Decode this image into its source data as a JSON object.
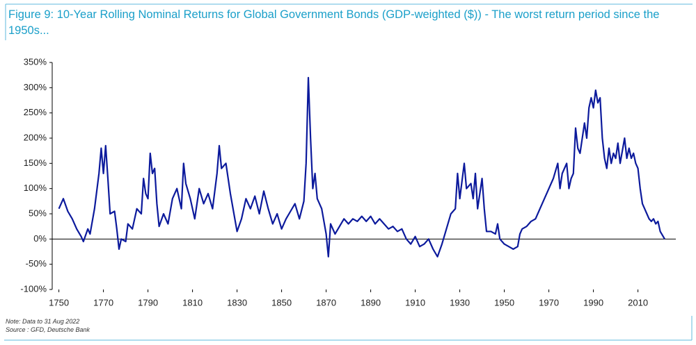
{
  "chart_data": {
    "type": "line",
    "title": "Figure 9: 10-Year Rolling Nominal Returns for Global Government Bonds (GDP-weighted ($)) - The worst return period since the 1950s...",
    "note": "Note: Data to 31 Aug 2022",
    "source": "Source : GFD, Deutsche Bank",
    "xlim": [
      1747,
      2027
    ],
    "xticks": [
      1750,
      1770,
      1790,
      1810,
      1830,
      1850,
      1870,
      1890,
      1910,
      1930,
      1950,
      1970,
      1990,
      2010
    ],
    "ylim": [
      -100,
      350
    ],
    "yticks": [
      {
        "value": -100,
        "label": "-100%"
      },
      {
        "value": -50,
        "label": "-50%"
      },
      {
        "value": 0,
        "label": "0%"
      },
      {
        "value": 50,
        "label": "50%"
      },
      {
        "value": 100,
        "label": "100%"
      },
      {
        "value": 150,
        "label": "150%"
      },
      {
        "value": 200,
        "label": "200%"
      },
      {
        "value": 250,
        "label": "250%"
      },
      {
        "value": 300,
        "label": "300%"
      },
      {
        "value": 350,
        "label": "350%"
      }
    ],
    "grid": false,
    "color": "#0c1a9c",
    "x": [
      1750,
      1752,
      1754,
      1756,
      1758,
      1760,
      1761,
      1763,
      1764,
      1766,
      1768,
      1769,
      1770,
      1771,
      1772,
      1773,
      1775,
      1776,
      1777,
      1778,
      1780,
      1781,
      1783,
      1785,
      1787,
      1788,
      1789,
      1790,
      1791,
      1792,
      1793,
      1794,
      1795,
      1797,
      1799,
      1801,
      1803,
      1805,
      1806,
      1807,
      1809,
      1811,
      1813,
      1815,
      1817,
      1819,
      1821,
      1822,
      1823,
      1825,
      1827,
      1829,
      1830,
      1832,
      1834,
      1836,
      1838,
      1840,
      1842,
      1844,
      1846,
      1848,
      1850,
      1852,
      1854,
      1856,
      1858,
      1860,
      1861,
      1862,
      1863,
      1864,
      1865,
      1866,
      1868,
      1870,
      1871,
      1872,
      1874,
      1876,
      1878,
      1880,
      1882,
      1884,
      1886,
      1888,
      1890,
      1892,
      1894,
      1896,
      1898,
      1900,
      1902,
      1904,
      1906,
      1908,
      1910,
      1912,
      1914,
      1916,
      1918,
      1920,
      1922,
      1924,
      1926,
      1928,
      1929,
      1930,
      1932,
      1933,
      1935,
      1936,
      1937,
      1938,
      1940,
      1941,
      1942,
      1944,
      1946,
      1947,
      1948,
      1950,
      1952,
      1954,
      1956,
      1957,
      1958,
      1960,
      1962,
      1964,
      1966,
      1968,
      1970,
      1972,
      1974,
      1975,
      1976,
      1978,
      1979,
      1980,
      1981,
      1982,
      1983,
      1984,
      1985,
      1986,
      1987,
      1988,
      1989,
      1990,
      1991,
      1992,
      1993,
      1994,
      1995,
      1996,
      1997,
      1998,
      1999,
      2000,
      2001,
      2002,
      2003,
      2004,
      2005,
      2006,
      2007,
      2008,
      2009,
      2010,
      2011,
      2012,
      2013,
      2014,
      2015,
      2016,
      2017,
      2018,
      2019,
      2020,
      2022
    ],
    "values": [
      60,
      80,
      55,
      40,
      20,
      5,
      -5,
      20,
      10,
      60,
      130,
      180,
      130,
      185,
      120,
      50,
      55,
      20,
      -20,
      0,
      -5,
      30,
      20,
      60,
      50,
      120,
      90,
      80,
      170,
      130,
      140,
      70,
      25,
      50,
      30,
      80,
      100,
      60,
      150,
      110,
      80,
      40,
      100,
      70,
      90,
      60,
      130,
      185,
      140,
      150,
      90,
      40,
      15,
      40,
      80,
      60,
      85,
      50,
      95,
      60,
      30,
      50,
      20,
      40,
      55,
      70,
      40,
      75,
      150,
      320,
      200,
      100,
      130,
      80,
      60,
      10,
      -35,
      30,
      10,
      25,
      40,
      30,
      40,
      35,
      45,
      35,
      45,
      30,
      40,
      30,
      20,
      25,
      15,
      20,
      0,
      -10,
      5,
      -15,
      -10,
      0,
      -20,
      -35,
      -10,
      20,
      50,
      60,
      130,
      80,
      150,
      100,
      110,
      80,
      130,
      60,
      120,
      60,
      15,
      15,
      10,
      30,
      0,
      -10,
      -15,
      -20,
      -15,
      10,
      20,
      25,
      35,
      40,
      60,
      80,
      100,
      120,
      150,
      100,
      130,
      150,
      100,
      120,
      130,
      220,
      180,
      170,
      200,
      230,
      200,
      260,
      280,
      260,
      295,
      270,
      280,
      200,
      160,
      140,
      180,
      150,
      170,
      160,
      190,
      150,
      175,
      200,
      160,
      180,
      160,
      170,
      150,
      140,
      100,
      70,
      60,
      50,
      40,
      35,
      40,
      30,
      35,
      15,
      0
    ]
  }
}
